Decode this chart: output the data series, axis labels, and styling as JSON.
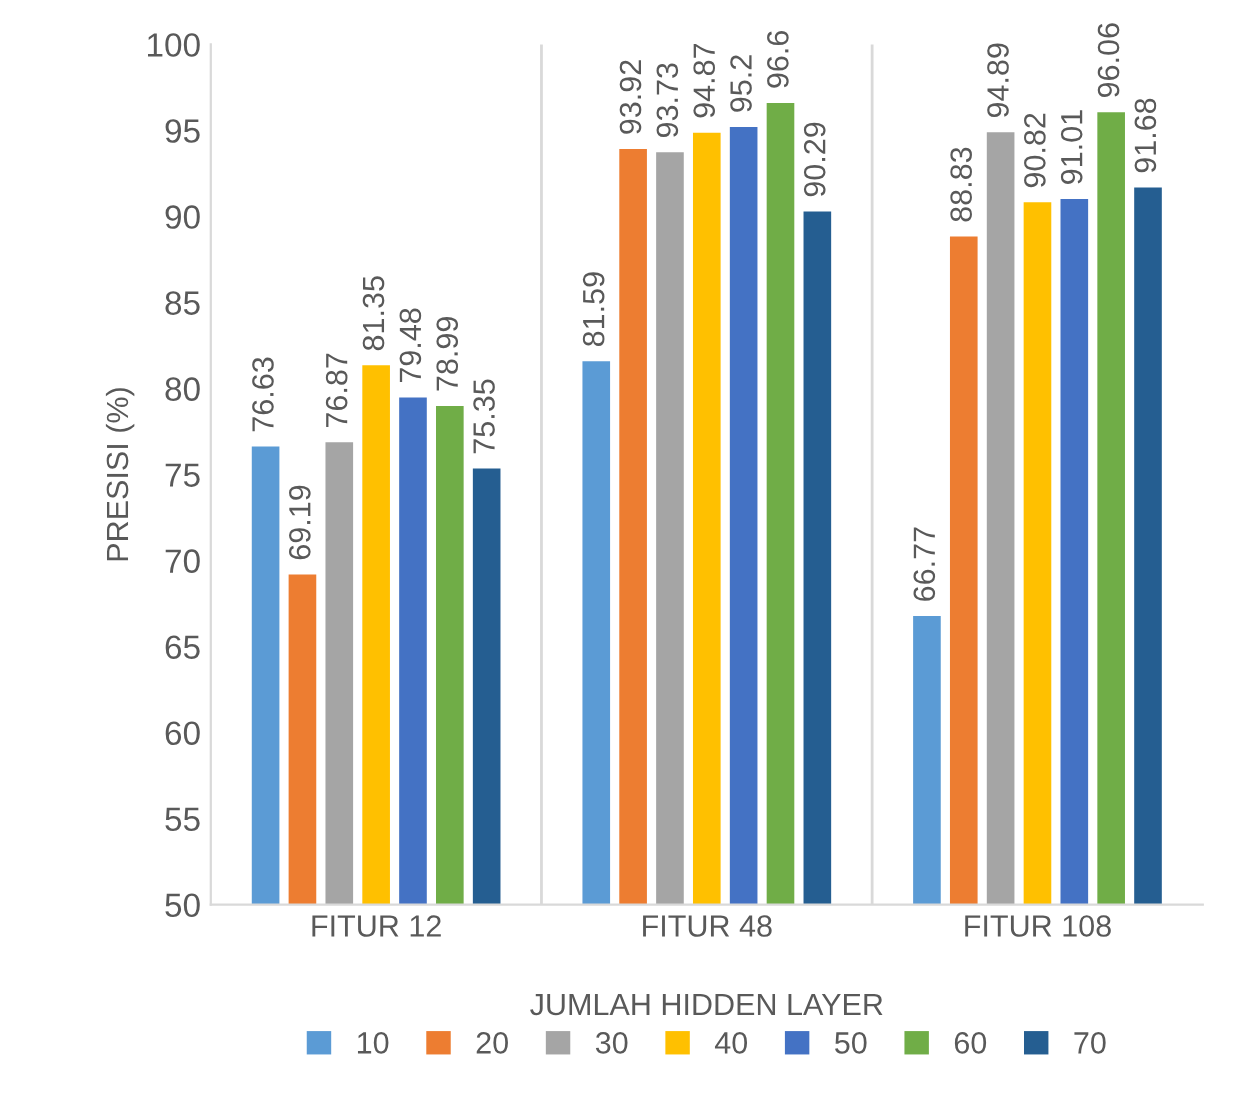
{
  "chart_data": {
    "type": "bar",
    "xlabel": "JUMLAH HIDDEN LAYER",
    "ylabel": "PRESISI (%)",
    "categories": [
      "FITUR 12",
      "FITUR 48",
      "FITUR 108"
    ],
    "series": [
      {
        "name": "10",
        "color": "#5b9bd5",
        "values": [
          76.63,
          81.59,
          66.77
        ]
      },
      {
        "name": "20",
        "color": "#ed7d31",
        "values": [
          69.19,
          93.92,
          88.83
        ]
      },
      {
        "name": "30",
        "color": "#a5a5a5",
        "values": [
          76.87,
          93.73,
          94.89
        ]
      },
      {
        "name": "40",
        "color": "#ffc000",
        "values": [
          81.35,
          94.87,
          90.82
        ]
      },
      {
        "name": "50",
        "color": "#4472c4",
        "values": [
          79.48,
          95.2,
          91.01
        ]
      },
      {
        "name": "60",
        "color": "#70ad47",
        "values": [
          78.99,
          96.6,
          96.06
        ]
      },
      {
        "name": "70",
        "color": "#255e91",
        "values": [
          75.35,
          90.29,
          91.68
        ]
      }
    ],
    "ylim": [
      50,
      100
    ],
    "yticks": [
      50,
      55,
      60,
      65,
      70,
      75,
      80,
      85,
      90,
      95,
      100
    ],
    "grid": "x",
    "legend": "bottom",
    "data_labels": true
  }
}
